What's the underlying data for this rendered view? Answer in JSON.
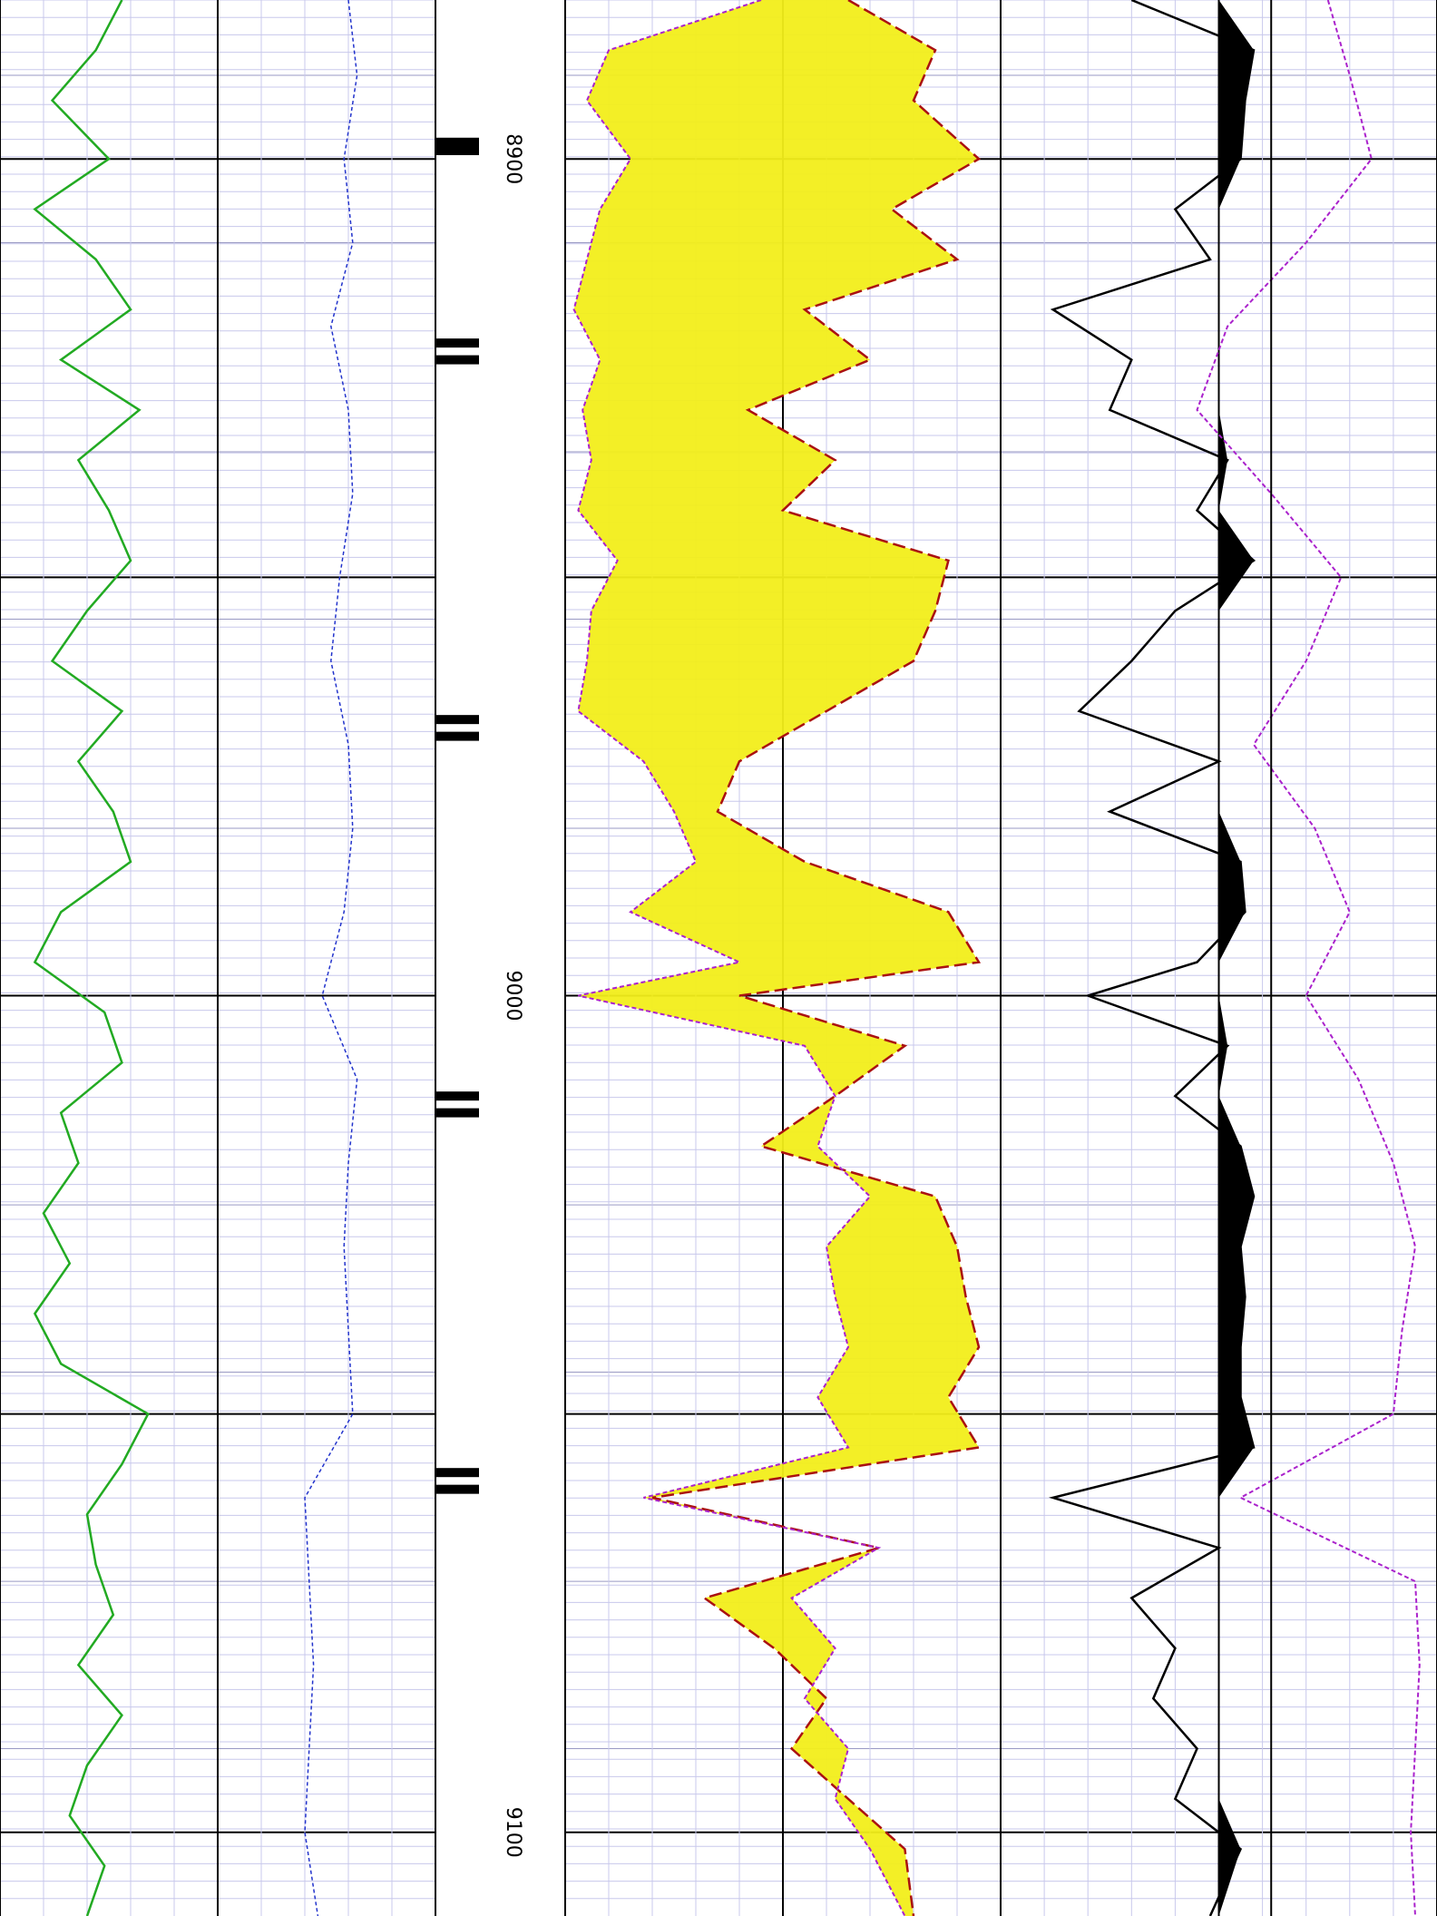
{
  "chart_data": {
    "type": "line",
    "title": "",
    "depth_unit": "",
    "depth_range": [
      8881,
      9110
    ],
    "depth_labels": [
      {
        "depth": 8900,
        "text": "8900"
      },
      {
        "depth": 9000,
        "text": "9000"
      },
      {
        "depth": 9100,
        "text": "9100"
      }
    ],
    "depth_ticks": [
      8890,
      8910,
      8935,
      8955,
      8980,
      9000,
      9025,
      9045,
      9070,
      9090
    ],
    "grid": true,
    "colors": {
      "gr": "#22aa22",
      "sp": "#2233cc",
      "res_deep": "#aa1111",
      "res_shallow": "#aa22cc",
      "fill": "#f2ee1a",
      "sonic": "#000000",
      "caliper": "#aa22cc",
      "grid_major": "#000000",
      "grid_minor": "#c8c8ec"
    },
    "series": [
      {
        "key": "gr",
        "x_range": [
          0,
          100
        ],
        "depth": [
          8881,
          8887,
          8893,
          8900,
          8906,
          8912,
          8918,
          8924,
          8930,
          8936,
          8942,
          8948,
          8954,
          8960,
          8966,
          8972,
          8978,
          8984,
          8990,
          8996,
          9002,
          9008,
          9014,
          9020,
          9026,
          9032,
          9038,
          9044,
          9050,
          9056,
          9062,
          9068,
          9074,
          9080,
          9086,
          9092,
          9098,
          9104,
          9110
        ],
        "values": [
          28,
          22,
          12,
          25,
          8,
          22,
          30,
          14,
          32,
          18,
          25,
          30,
          20,
          12,
          28,
          18,
          26,
          30,
          14,
          8,
          24,
          28,
          14,
          18,
          10,
          16,
          8,
          14,
          34,
          28,
          20,
          22,
          26,
          18,
          28,
          20,
          16,
          24,
          20
        ]
      },
      {
        "key": "sp",
        "x_range": [
          0,
          100
        ],
        "depth": [
          8881,
          8890,
          8900,
          8910,
          8920,
          8930,
          8940,
          8950,
          8960,
          8970,
          8980,
          8990,
          9000,
          9010,
          9020,
          9030,
          9040,
          9050,
          9060,
          9070,
          9080,
          9090,
          9100,
          9110
        ],
        "values": [
          80,
          82,
          79,
          81,
          76,
          80,
          81,
          78,
          76,
          80,
          81,
          79,
          74,
          82,
          80,
          79,
          80,
          81,
          70,
          71,
          72,
          71,
          70,
          73
        ]
      },
      {
        "key": "res_deep",
        "x_range": [
          0,
          100
        ],
        "depth": [
          8881,
          8887,
          8893,
          8900,
          8906,
          8912,
          8918,
          8924,
          8930,
          8936,
          8942,
          8948,
          8954,
          8960,
          8966,
          8972,
          8978,
          8984,
          8990,
          8996,
          9000,
          9006,
          9012,
          9018,
          9024,
          9030,
          9036,
          9042,
          9048,
          9054,
          9060,
          9066,
          9072,
          9078,
          9084,
          9090,
          9096,
          9102,
          9110
        ],
        "values": [
          65,
          85,
          80,
          95,
          75,
          90,
          55,
          70,
          42,
          62,
          50,
          88,
          85,
          80,
          60,
          40,
          35,
          55,
          88,
          95,
          40,
          78,
          62,
          45,
          85,
          90,
          92,
          95,
          88,
          95,
          20,
          72,
          32,
          48,
          60,
          52,
          65,
          78,
          80
        ]
      },
      {
        "key": "res_shallow",
        "x_range": [
          0,
          100
        ],
        "depth": [
          8881,
          8887,
          8893,
          8900,
          8906,
          8912,
          8918,
          8924,
          8930,
          8936,
          8942,
          8948,
          8954,
          8960,
          8966,
          8972,
          8978,
          8984,
          8990,
          8996,
          9000,
          9006,
          9012,
          9018,
          9024,
          9030,
          9036,
          9042,
          9048,
          9054,
          9060,
          9066,
          9072,
          9078,
          9084,
          9090,
          9096,
          9102,
          9110
        ],
        "values": [
          45,
          10,
          5,
          15,
          8,
          5,
          2,
          8,
          4,
          6,
          3,
          12,
          6,
          5,
          3,
          18,
          25,
          30,
          15,
          40,
          3,
          55,
          62,
          58,
          70,
          60,
          62,
          65,
          58,
          65,
          18,
          72,
          52,
          62,
          55,
          65,
          62,
          70,
          78
        ]
      },
      {
        "key": "sonic",
        "x_range": [
          0,
          100
        ],
        "depth": [
          8881,
          8887,
          8893,
          8900,
          8906,
          8912,
          8918,
          8924,
          8930,
          8936,
          8942,
          8948,
          8954,
          8960,
          8966,
          8972,
          8978,
          8984,
          8990,
          8996,
          9000,
          9006,
          9012,
          9018,
          9024,
          9030,
          9036,
          9042,
          9048,
          9054,
          9060,
          9066,
          9072,
          9078,
          9084,
          9090,
          9096,
          9102,
          9110
        ],
        "values": [
          30,
          58,
          56,
          55,
          40,
          48,
          12,
          30,
          25,
          52,
          45,
          58,
          40,
          30,
          18,
          50,
          25,
          55,
          56,
          45,
          20,
          52,
          40,
          55,
          58,
          55,
          56,
          55,
          55,
          58,
          12,
          50,
          30,
          40,
          35,
          45,
          40,
          55,
          48
        ]
      },
      {
        "key": "caliper",
        "x_range": [
          0,
          100
        ],
        "depth": [
          8881,
          8890,
          8900,
          8910,
          8920,
          8930,
          8940,
          8950,
          8960,
          8970,
          8980,
          8990,
          9000,
          9010,
          9020,
          9030,
          9040,
          9050,
          9060,
          9070,
          9080,
          9090,
          9100,
          9110
        ],
        "values": [
          75,
          80,
          85,
          70,
          52,
          45,
          62,
          78,
          70,
          58,
          72,
          80,
          70,
          82,
          90,
          95,
          92,
          90,
          55,
          95,
          96,
          95,
          94,
          95
        ]
      }
    ],
    "tick_marks_depth": [
      8898,
      8899,
      8922,
      8924,
      8967,
      8969,
      9012,
      9014,
      9057,
      9059
    ]
  }
}
